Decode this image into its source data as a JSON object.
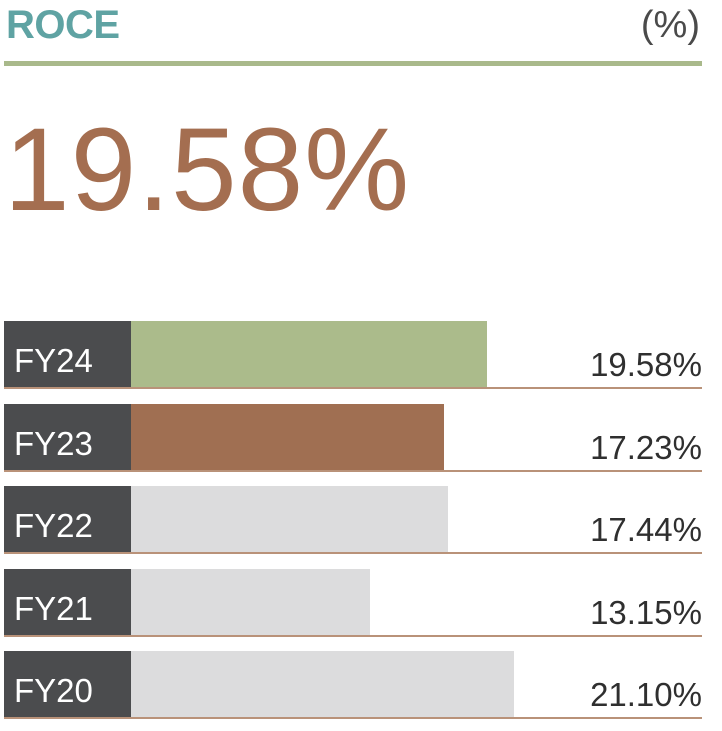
{
  "header": {
    "title": "ROCE",
    "unit": "(%)"
  },
  "headline": "19.58%",
  "colors": {
    "title": "#5fa3a3",
    "headline": "#a46e50",
    "rule": "#a9b98b",
    "label_bg": "#4b4c4e"
  },
  "chart_data": {
    "type": "bar",
    "orientation": "horizontal",
    "categories": [
      "FY24",
      "FY23",
      "FY22",
      "FY21",
      "FY20"
    ],
    "values": [
      19.58,
      17.23,
      17.44,
      13.15,
      21.1
    ],
    "value_labels": [
      "19.58%",
      "17.23%",
      "17.44%",
      "13.15%",
      "21.10%"
    ],
    "bar_colors": [
      "#abbb8b",
      "#a06f52",
      "#dcdcdd",
      "#dcdcdd",
      "#dcdcdd"
    ],
    "title": "ROCE",
    "xlim": [
      0,
      25
    ]
  }
}
